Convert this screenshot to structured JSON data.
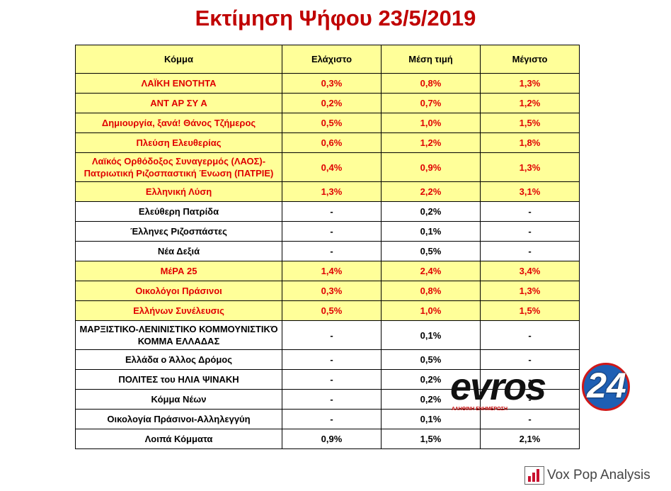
{
  "title": "Εκτίμηση Ψήφου 23/5/2019",
  "table": {
    "headers": [
      "Κόμμα",
      "Ελάχιστο",
      "Μέση τιμή",
      "Μέγιστο"
    ],
    "rows": [
      {
        "party": "ΛΑΪΚΗ ΕΝΟΤΗΤΑ",
        "min": "0,3%",
        "avg": "0,8%",
        "max": "1,3%",
        "highlight": true
      },
      {
        "party": "ΑΝΤ ΑΡ ΣΥ Α",
        "min": "0,2%",
        "avg": "0,7%",
        "max": "1,2%",
        "highlight": true
      },
      {
        "party": "Δημιουργία, ξανά! Θάνος Τζήμερος",
        "min": "0,5%",
        "avg": "1,0%",
        "max": "1,5%",
        "highlight": true
      },
      {
        "party": "Πλεύση Ελευθερίας",
        "min": "0,6%",
        "avg": "1,2%",
        "max": "1,8%",
        "highlight": true
      },
      {
        "party": "Λαϊκός Ορθόδοξος Συναγερμός (ΛΑΟΣ)- Πατριωτική Ριζοσπαστική Ένωση (ΠΑΤΡΙΕ)",
        "min": "0,4%",
        "avg": "0,9%",
        "max": "1,3%",
        "highlight": true,
        "tall": true
      },
      {
        "party": "Ελληνική Λύση",
        "min": "1,3%",
        "avg": "2,2%",
        "max": "3,1%",
        "highlight": true
      },
      {
        "party": "Ελεύθερη Πατρίδα",
        "min": "-",
        "avg": "0,2%",
        "max": "-",
        "highlight": false
      },
      {
        "party": "Έλληνες Ριζοσπάστες",
        "min": "-",
        "avg": "0,1%",
        "max": "-",
        "highlight": false
      },
      {
        "party": "Νέα Δεξιά",
        "min": "-",
        "avg": "0,5%",
        "max": "-",
        "highlight": false
      },
      {
        "party": "ΜέΡΑ 25",
        "min": "1,4%",
        "avg": "2,4%",
        "max": "3,4%",
        "highlight": true
      },
      {
        "party": "Οικολόγοι Πράσινοι",
        "min": "0,3%",
        "avg": "0,8%",
        "max": "1,3%",
        "highlight": true
      },
      {
        "party": "Ελλήνων Συνέλευσις",
        "min": "0,5%",
        "avg": "1,0%",
        "max": "1,5%",
        "highlight": true
      },
      {
        "party": "ΜΑΡΞΙΣΤΙΚΟ-ΛΕΝΙΝΙΣΤΙΚΟ ΚΟΜΜΟΥΝΙΣΤΙΚΌ ΚΟΜΜΑ ΕΛΛΑΔΑΣ",
        "min": "-",
        "avg": "0,1%",
        "max": "-",
        "highlight": false,
        "tall": true
      },
      {
        "party": "Ελλάδα ο Άλλος Δρόμος",
        "min": "-",
        "avg": "0,5%",
        "max": "-",
        "highlight": false
      },
      {
        "party": "ΠΟΛΙΤΕΣ του ΗΛΙΑ ΨΙΝΑΚΗ",
        "min": "-",
        "avg": "0,2%",
        "max": "-",
        "highlight": false
      },
      {
        "party": "Κόμμα Νέων",
        "min": "-",
        "avg": "0,2%",
        "max": "-",
        "highlight": false
      },
      {
        "party": "Οικολογία Πράσινοι-Αλληλεγγύη",
        "min": "-",
        "avg": "0,1%",
        "max": "-",
        "highlight": false
      },
      {
        "party": "Λοιπά Κόμματα",
        "min": "0,9%",
        "avg": "1,5%",
        "max": "2,1%",
        "highlight": false
      }
    ]
  },
  "watermark": {
    "word": "evros",
    "number": "24",
    "tagline": "ΑΛΗΘΙΝΗ ΕΝΗΜΕΡΩΣΗ"
  },
  "footer_logo": {
    "text": "Vox Pop Analysis",
    "accent": "#c8102e"
  },
  "colors": {
    "title": "#c00000",
    "highlight_bg": "#ffff99",
    "highlight_text": "#e00000"
  }
}
